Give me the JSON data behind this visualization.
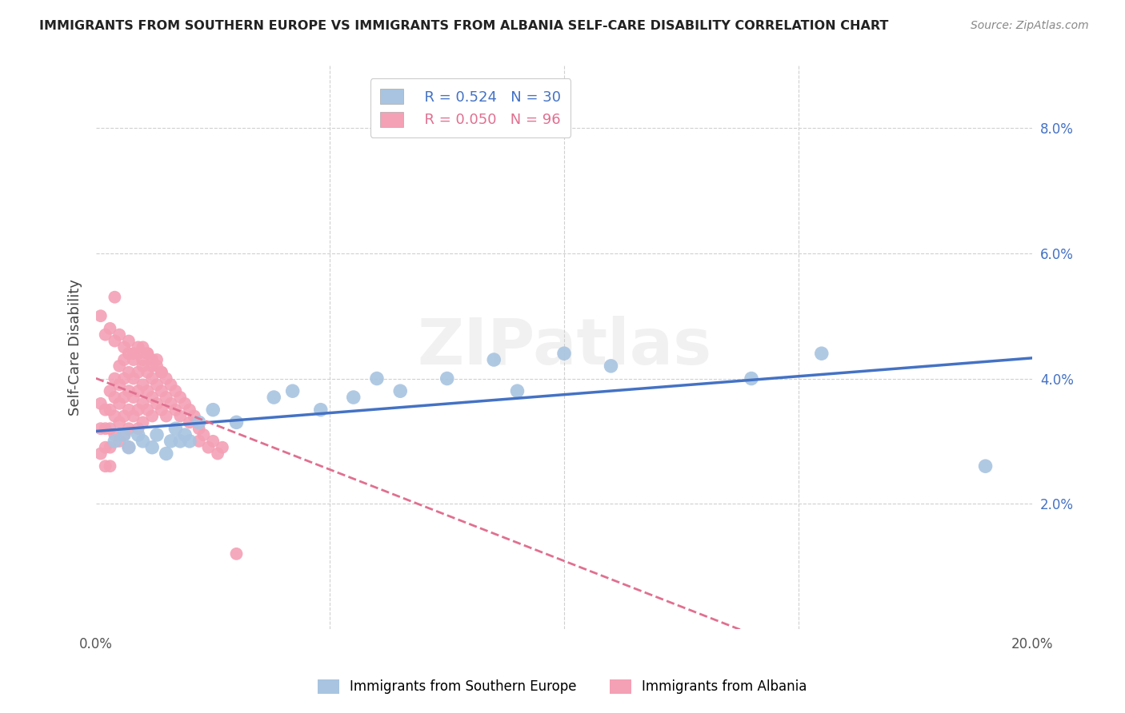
{
  "title": "IMMIGRANTS FROM SOUTHERN EUROPE VS IMMIGRANTS FROM ALBANIA SELF-CARE DISABILITY CORRELATION CHART",
  "source": "Source: ZipAtlas.com",
  "ylabel": "Self-Care Disability",
  "xlim": [
    0.0,
    0.2
  ],
  "ylim": [
    0.0,
    0.09
  ],
  "xticks": [
    0.0,
    0.05,
    0.1,
    0.15,
    0.2
  ],
  "xtick_labels": [
    "0.0%",
    "",
    "",
    "",
    "20.0%"
  ],
  "yticks_right": [
    0.02,
    0.04,
    0.06,
    0.08
  ],
  "ytick_labels_right": [
    "2.0%",
    "4.0%",
    "6.0%",
    "8.0%"
  ],
  "legend1_r": "R = 0.524",
  "legend1_n": "N = 30",
  "legend2_r": "R = 0.050",
  "legend2_n": "N = 96",
  "blue_color": "#a8c4e0",
  "pink_color": "#f4a0b5",
  "blue_line_color": "#4472c4",
  "pink_line_color": "#e07090",
  "watermark": "ZIPatlas",
  "legend_label1": "Immigrants from Southern Europe",
  "legend_label2": "Immigrants from Albania",
  "blue_scatter_x": [
    0.004,
    0.006,
    0.007,
    0.009,
    0.01,
    0.012,
    0.013,
    0.015,
    0.016,
    0.017,
    0.018,
    0.019,
    0.02,
    0.022,
    0.025,
    0.03,
    0.038,
    0.042,
    0.048,
    0.055,
    0.06,
    0.065,
    0.075,
    0.085,
    0.09,
    0.1,
    0.11,
    0.14,
    0.155,
    0.19
  ],
  "blue_scatter_y": [
    0.03,
    0.031,
    0.029,
    0.031,
    0.03,
    0.029,
    0.031,
    0.028,
    0.03,
    0.032,
    0.03,
    0.031,
    0.03,
    0.033,
    0.035,
    0.033,
    0.037,
    0.038,
    0.035,
    0.037,
    0.04,
    0.038,
    0.04,
    0.043,
    0.038,
    0.044,
    0.042,
    0.04,
    0.044,
    0.026
  ],
  "pink_scatter_x": [
    0.001,
    0.001,
    0.001,
    0.002,
    0.002,
    0.002,
    0.002,
    0.003,
    0.003,
    0.003,
    0.003,
    0.003,
    0.004,
    0.004,
    0.004,
    0.004,
    0.005,
    0.005,
    0.005,
    0.005,
    0.005,
    0.006,
    0.006,
    0.006,
    0.006,
    0.006,
    0.007,
    0.007,
    0.007,
    0.007,
    0.007,
    0.007,
    0.008,
    0.008,
    0.008,
    0.008,
    0.009,
    0.009,
    0.009,
    0.009,
    0.009,
    0.01,
    0.01,
    0.01,
    0.01,
    0.01,
    0.011,
    0.011,
    0.011,
    0.011,
    0.012,
    0.012,
    0.012,
    0.012,
    0.013,
    0.013,
    0.013,
    0.014,
    0.014,
    0.014,
    0.015,
    0.015,
    0.015,
    0.016,
    0.016,
    0.017,
    0.017,
    0.018,
    0.018,
    0.019,
    0.02,
    0.02,
    0.021,
    0.022,
    0.022,
    0.023,
    0.024,
    0.025,
    0.026,
    0.027,
    0.001,
    0.002,
    0.003,
    0.004,
    0.005,
    0.006,
    0.007,
    0.008,
    0.009,
    0.01,
    0.011,
    0.012,
    0.013,
    0.014,
    0.03,
    0.004
  ],
  "pink_scatter_y": [
    0.036,
    0.032,
    0.028,
    0.035,
    0.032,
    0.029,
    0.026,
    0.038,
    0.035,
    0.032,
    0.029,
    0.026,
    0.04,
    0.037,
    0.034,
    0.031,
    0.042,
    0.039,
    0.036,
    0.033,
    0.03,
    0.043,
    0.04,
    0.037,
    0.034,
    0.031,
    0.044,
    0.041,
    0.038,
    0.035,
    0.032,
    0.029,
    0.043,
    0.04,
    0.037,
    0.034,
    0.044,
    0.041,
    0.038,
    0.035,
    0.032,
    0.045,
    0.042,
    0.039,
    0.036,
    0.033,
    0.044,
    0.041,
    0.038,
    0.035,
    0.043,
    0.04,
    0.037,
    0.034,
    0.042,
    0.039,
    0.036,
    0.041,
    0.038,
    0.035,
    0.04,
    0.037,
    0.034,
    0.039,
    0.036,
    0.038,
    0.035,
    0.037,
    0.034,
    0.036,
    0.035,
    0.033,
    0.034,
    0.032,
    0.03,
    0.031,
    0.029,
    0.03,
    0.028,
    0.029,
    0.05,
    0.047,
    0.048,
    0.046,
    0.047,
    0.045,
    0.046,
    0.044,
    0.045,
    0.043,
    0.044,
    0.042,
    0.043,
    0.041,
    0.012,
    0.053
  ]
}
